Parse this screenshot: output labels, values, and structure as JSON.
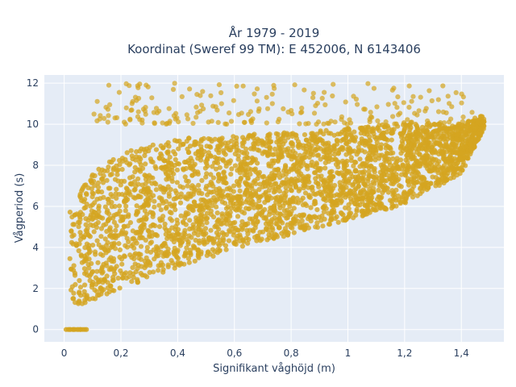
{
  "chart_data": {
    "type": "scatter",
    "title": "År 1979 - 2019",
    "subtitle": "Koordinat (Sweref 99 TM): E 452006, N 6143406",
    "xlabel": "Signifikant våghöjd (m)",
    "ylabel": "Vågperiod (s)",
    "xlim": [
      -0.07,
      1.55
    ],
    "ylim": [
      -0.6,
      12.4
    ],
    "x_ticks": [
      0,
      0.2,
      0.4,
      0.6,
      0.8,
      1,
      1.2,
      1.4
    ],
    "x_tick_labels": [
      "0",
      "0,2",
      "0,4",
      "0,6",
      "0,8",
      "1",
      "1,2",
      "1,4"
    ],
    "y_ticks": [
      0,
      2,
      4,
      6,
      8,
      10,
      12
    ],
    "y_tick_labels": [
      "0",
      "2",
      "4",
      "6",
      "8",
      "10",
      "12"
    ],
    "grid": true,
    "legend": "none",
    "marker_color": "#d4a520",
    "plot_background": "#e5ecf6",
    "grid_color": "#ffffff",
    "point_cloud": {
      "main_band": {
        "x_range": [
          0.02,
          1.48
        ],
        "lower_edge": [
          [
            0.02,
            1.0
          ],
          [
            0.2,
            2.0
          ],
          [
            0.4,
            3.0
          ],
          [
            0.6,
            3.9
          ],
          [
            0.8,
            4.6
          ],
          [
            1.0,
            5.3
          ],
          [
            1.2,
            6.1
          ],
          [
            1.4,
            7.6
          ],
          [
            1.48,
            9.8
          ]
        ],
        "upper_edge": [
          [
            0.02,
            6.0
          ],
          [
            0.1,
            7.6
          ],
          [
            0.2,
            8.6
          ],
          [
            0.4,
            9.3
          ],
          [
            0.6,
            9.5
          ],
          [
            0.8,
            9.6
          ],
          [
            1.0,
            9.8
          ],
          [
            1.2,
            10.1
          ],
          [
            1.4,
            10.0
          ],
          [
            1.48,
            10.5
          ]
        ]
      },
      "sparse_top": {
        "x_range": [
          0.1,
          1.45
        ],
        "y_range": [
          10.0,
          12.0
        ]
      },
      "zero_row": {
        "x_range": [
          0.0,
          0.08
        ],
        "y": 0
      }
    }
  }
}
